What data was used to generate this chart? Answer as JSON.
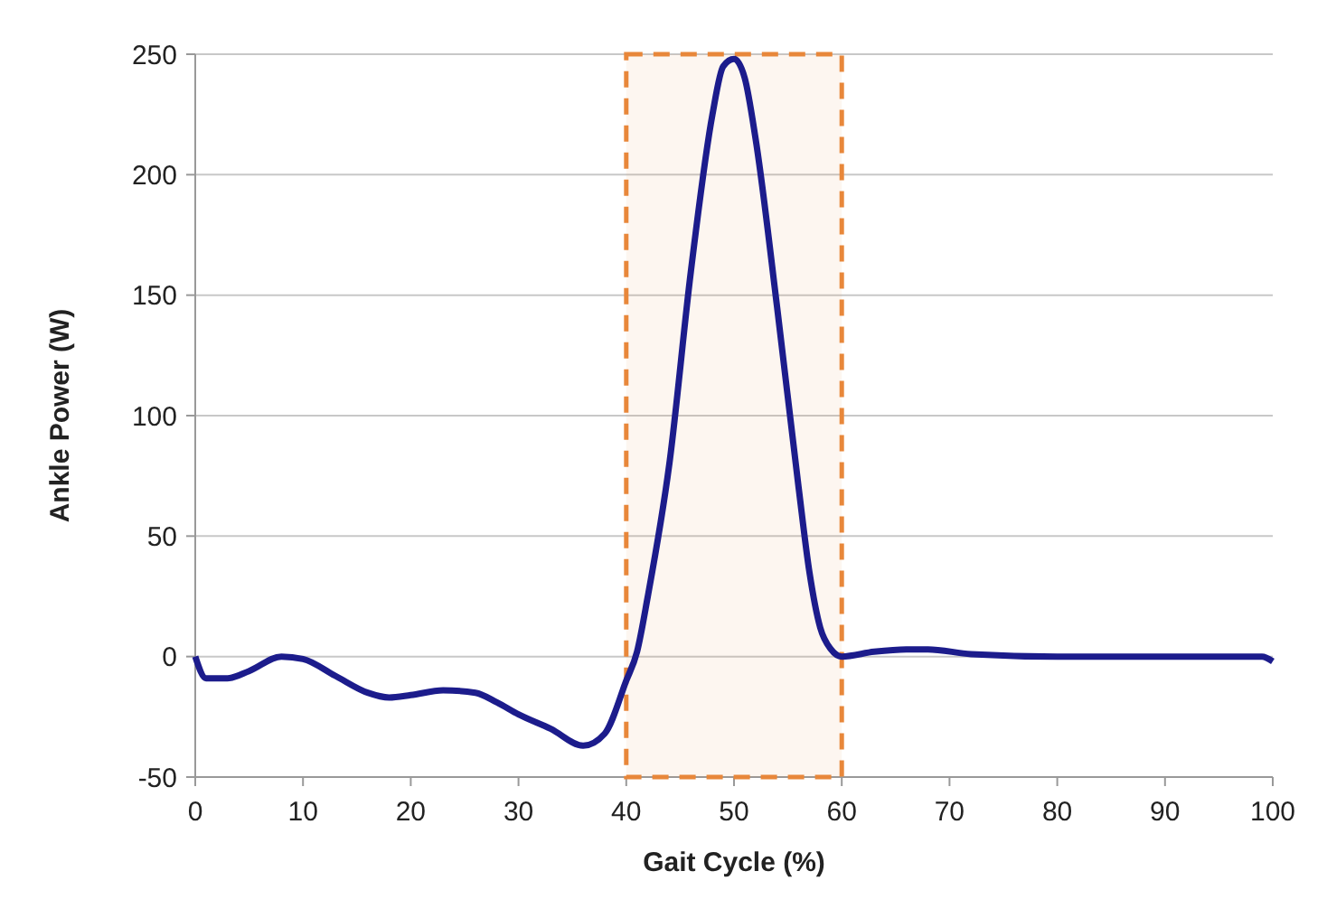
{
  "chart_data": {
    "type": "line",
    "xlabel": "Gait Cycle (%)",
    "ylabel": "Ankle Power (W)",
    "xlim": [
      0,
      100
    ],
    "xticks": [
      0,
      10,
      20,
      30,
      40,
      50,
      60,
      70,
      80,
      90,
      100
    ],
    "ylim": [
      -50,
      250
    ],
    "yticks": [
      -50,
      0,
      50,
      100,
      150,
      200,
      250
    ],
    "grid": "y",
    "series": [
      {
        "color": "#1c1c8c",
        "x": [
          0,
          1,
          3,
          5,
          8,
          10,
          13,
          16,
          18,
          20,
          23,
          26,
          28,
          30,
          33,
          36,
          38,
          40,
          41,
          42,
          44,
          46,
          48,
          49,
          50,
          51,
          52,
          54,
          56,
          57,
          58,
          59,
          60,
          63,
          66,
          68,
          72,
          80,
          90,
          99,
          100
        ],
        "values": [
          0,
          -9,
          -9,
          -6,
          0,
          -1,
          -8,
          -15,
          -17,
          -16,
          -14,
          -15,
          -19,
          -24,
          -30,
          -37,
          -32,
          -10,
          2,
          25,
          80,
          160,
          225,
          245,
          248,
          240,
          215,
          145,
          70,
          35,
          12,
          3,
          0,
          2,
          3,
          3,
          1,
          0,
          0,
          0,
          -2
        ]
      }
    ],
    "bands": [
      {
        "axis": "x",
        "from": 40,
        "to": 60,
        "color": "#e8873a"
      }
    ]
  }
}
